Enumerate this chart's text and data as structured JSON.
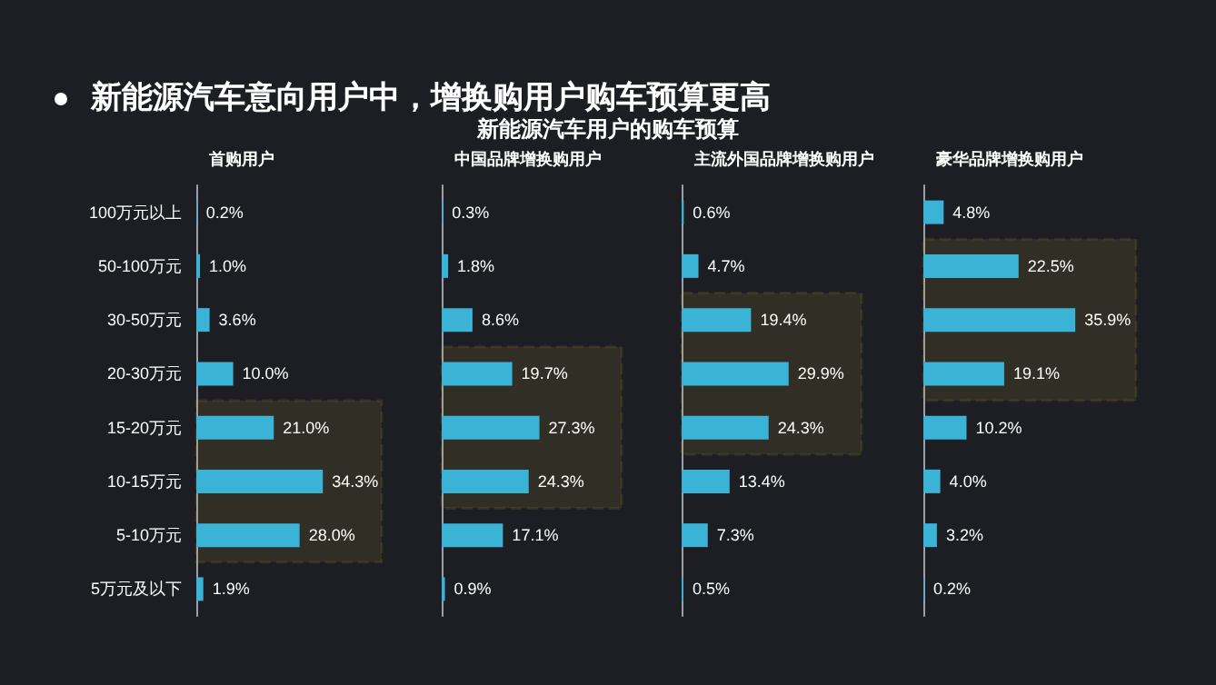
{
  "chart_data": [
    {
      "type": "bar",
      "orientation": "horizontal",
      "title": "首购用户",
      "annotations": [
        "新能源汽车意向用户中，增换购用户购车预算更高",
        "新能源汽车用户的购车预算"
      ],
      "categories": [
        "100万元以上",
        "50-100万元",
        "30-50万元",
        "20-30万元",
        "15-20万元",
        "10-15万元",
        "5-10万元",
        "5万元及以下"
      ],
      "series": [
        {
          "color": "#3bb3d6",
          "values": [
            0.2,
            1.0,
            3.6,
            10.0,
            21.0,
            34.3,
            28.0,
            1.9
          ],
          "value_labels": [
            "0.2%",
            "1.0%",
            "3.6%",
            "10.0%",
            "21.0%",
            "34.3%",
            "28.0%",
            "1.9%"
          ]
        }
      ],
      "bands": [
        {
          "axis": "y",
          "from": "15-20万元",
          "to": "5-10万元",
          "color": "#c9a13b"
        }
      ],
      "tick_labels": "y",
      "grid": false
    },
    {
      "type": "bar",
      "orientation": "horizontal",
      "title": "中国品牌增换购用户",
      "categories": [
        "100万元以上",
        "50-100万元",
        "30-50万元",
        "20-30万元",
        "15-20万元",
        "10-15万元",
        "5-10万元",
        "5万元及以下"
      ],
      "series": [
        {
          "color": "#3bb3d6",
          "values": [
            0.3,
            1.8,
            8.6,
            19.7,
            27.3,
            24.3,
            17.1,
            0.9
          ],
          "value_labels": [
            "0.3%",
            "1.8%",
            "8.6%",
            "19.7%",
            "27.3%",
            "24.3%",
            "17.1%",
            "0.9%"
          ]
        }
      ],
      "bands": [
        {
          "axis": "y",
          "from": "20-30万元",
          "to": "10-15万元",
          "color": "#c9a13b"
        }
      ],
      "tick_labels": false,
      "grid": false
    },
    {
      "type": "bar",
      "orientation": "horizontal",
      "title": "主流外国品牌增换购用户",
      "categories": [
        "100万元以上",
        "50-100万元",
        "30-50万元",
        "20-30万元",
        "15-20万元",
        "10-15万元",
        "5-10万元",
        "5万元及以下"
      ],
      "series": [
        {
          "color": "#3bb3d6",
          "values": [
            0.6,
            4.7,
            19.4,
            29.9,
            24.3,
            13.4,
            7.3,
            0.5
          ],
          "value_labels": [
            "0.6%",
            "4.7%",
            "19.4%",
            "29.9%",
            "24.3%",
            "13.4%",
            "7.3%",
            "0.5%"
          ]
        }
      ],
      "bands": [
        {
          "axis": "y",
          "from": "30-50万元",
          "to": "15-20万元",
          "color": "#c9a13b"
        }
      ],
      "tick_labels": false,
      "grid": false
    },
    {
      "type": "bar",
      "orientation": "horizontal",
      "title": "豪华品牌增换购用户",
      "categories": [
        "100万元以上",
        "50-100万元",
        "30-50万元",
        "20-30万元",
        "15-20万元",
        "10-15万元",
        "5-10万元",
        "5万元及以下"
      ],
      "series": [
        {
          "color": "#3bb3d6",
          "values": [
            4.8,
            22.5,
            35.9,
            19.1,
            10.2,
            4.0,
            3.2,
            0.2
          ],
          "value_labels": [
            "4.8%",
            "22.5%",
            "35.9%",
            "19.1%",
            "10.2%",
            "4.0%",
            "3.2%",
            "0.2%"
          ]
        }
      ],
      "bands": [
        {
          "axis": "y",
          "from": "50-100万元",
          "to": "20-30万元",
          "color": "#c9a13b"
        }
      ],
      "tick_labels": false,
      "grid": false
    }
  ]
}
